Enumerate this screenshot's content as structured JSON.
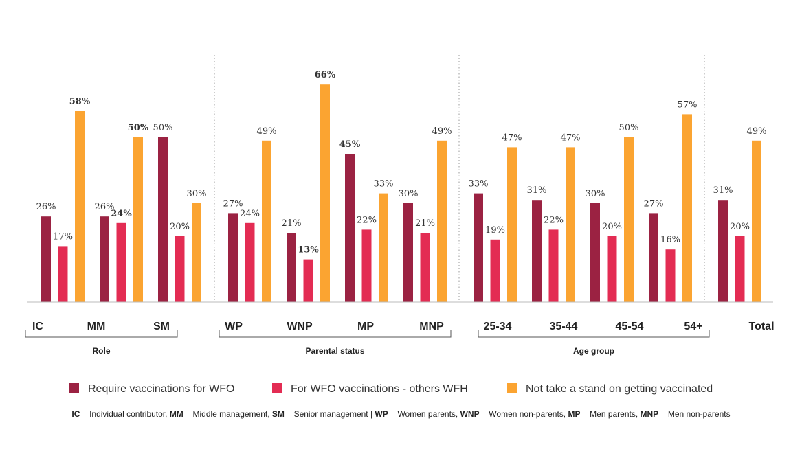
{
  "chart_data": {
    "type": "bar",
    "title": "",
    "xlabel": "",
    "ylabel": "",
    "ylim": [
      0,
      70
    ],
    "categories": [
      "IC",
      "MM",
      "SM",
      "WP",
      "WNP",
      "MP",
      "MNP",
      "25-34",
      "35-44",
      "45-54",
      "54+",
      "Total"
    ],
    "category_groups": [
      {
        "label": "Role",
        "categories": [
          "IC",
          "MM",
          "SM"
        ]
      },
      {
        "label": "Parental status",
        "categories": [
          "WP",
          "WNP",
          "MP",
          "MNP"
        ]
      },
      {
        "label": "Age group",
        "categories": [
          "25-34",
          "35-44",
          "45-54",
          "54+"
        ]
      },
      {
        "label": "",
        "categories": [
          "Total"
        ]
      }
    ],
    "series": [
      {
        "name": "Require vaccinations for WFO",
        "color": "#9b2242",
        "values": [
          26,
          26,
          50,
          27,
          21,
          45,
          30,
          33,
          31,
          30,
          27,
          31
        ]
      },
      {
        "name": "For WFO vaccinations - others WFH",
        "color": "#e32c53",
        "values": [
          17,
          24,
          20,
          24,
          13,
          22,
          21,
          19,
          22,
          20,
          16,
          20
        ]
      },
      {
        "name": "Not take a stand on getting vaccinated",
        "color": "#fba431",
        "values": [
          58,
          50,
          30,
          49,
          66,
          33,
          49,
          47,
          47,
          50,
          57,
          49
        ]
      }
    ],
    "value_suffix": "%",
    "bold_labels": [
      {
        "series": 2,
        "category": 0
      },
      {
        "series": 1,
        "category": 1
      },
      {
        "series": 2,
        "category": 1
      },
      {
        "series": 1,
        "category": 4
      },
      {
        "series": 2,
        "category": 4
      },
      {
        "series": 0,
        "category": 5
      }
    ],
    "legend_position": "bottom",
    "grid": false
  },
  "footnote": {
    "parts": [
      {
        "abbr": "IC",
        "text": " = Individual contributor,  "
      },
      {
        "abbr": "MM",
        "text": " = Middle management, "
      },
      {
        "abbr": "SM",
        "text": " = Senior management | "
      },
      {
        "abbr": "WP",
        "text": " = Women parents, "
      },
      {
        "abbr": "WNP",
        "text": " = Women non-parents, "
      },
      {
        "abbr": "MP",
        "text": " = Men parents, "
      },
      {
        "abbr": "MNP",
        "text": " = Men non-parents"
      }
    ]
  }
}
